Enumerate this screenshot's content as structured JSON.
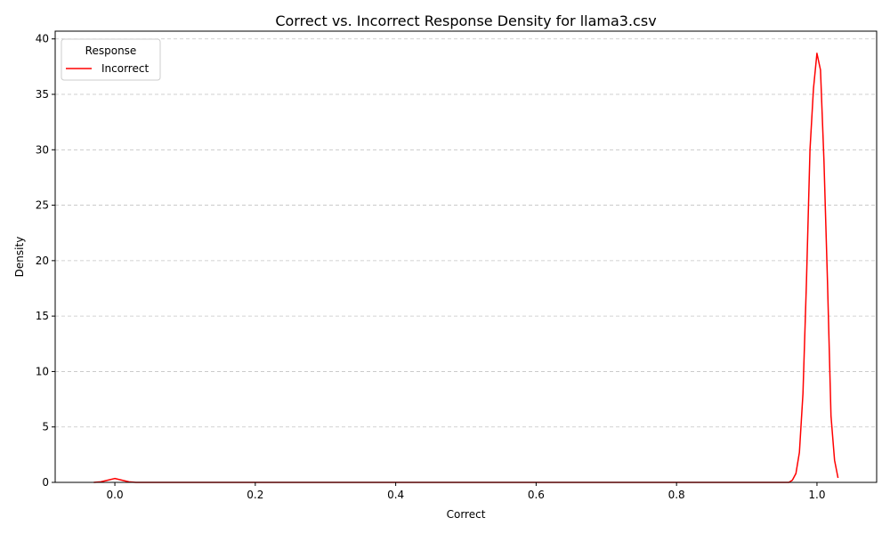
{
  "chart_data": {
    "type": "line",
    "title": "Correct vs. Incorrect Response Density for llama3.csv",
    "xlabel": "Correct",
    "ylabel": "Density",
    "xlim": [
      -0.085,
      1.085
    ],
    "ylim": [
      0,
      40.7
    ],
    "xticks": [
      0.0,
      0.2,
      0.4,
      0.6,
      0.8,
      1.0
    ],
    "xtick_labels": [
      "0.0",
      "0.2",
      "0.4",
      "0.6",
      "0.8",
      "1.0"
    ],
    "yticks": [
      0,
      5,
      10,
      15,
      20,
      25,
      30,
      35,
      40
    ],
    "ytick_labels": [
      "0",
      "5",
      "10",
      "15",
      "20",
      "25",
      "30",
      "35",
      "40"
    ],
    "grid": "y-dashed",
    "legend": {
      "title": "Response",
      "placement": "top-left"
    },
    "series": [
      {
        "name": "Incorrect",
        "color": "#ff0000",
        "x": [
          -0.03,
          -0.02,
          -0.01,
          0.0,
          0.01,
          0.02,
          0.03,
          0.05,
          0.1,
          0.2,
          0.3,
          0.4,
          0.5,
          0.6,
          0.7,
          0.8,
          0.9,
          0.95,
          0.96,
          0.965,
          0.97,
          0.975,
          0.98,
          0.985,
          0.99,
          0.995,
          1.0,
          1.005,
          1.01,
          1.015,
          1.02,
          1.025,
          1.03
        ],
        "y": [
          0.0,
          0.05,
          0.2,
          0.35,
          0.2,
          0.05,
          0.0,
          0.0,
          0.0,
          0.0,
          0.0,
          0.0,
          0.0,
          0.0,
          0.0,
          0.0,
          0.0,
          0.0,
          0.0,
          0.2,
          0.8,
          2.7,
          8.0,
          18.0,
          30.0,
          35.5,
          38.7,
          37.2,
          29.0,
          18.0,
          6.0,
          2.0,
          0.4
        ]
      }
    ]
  }
}
